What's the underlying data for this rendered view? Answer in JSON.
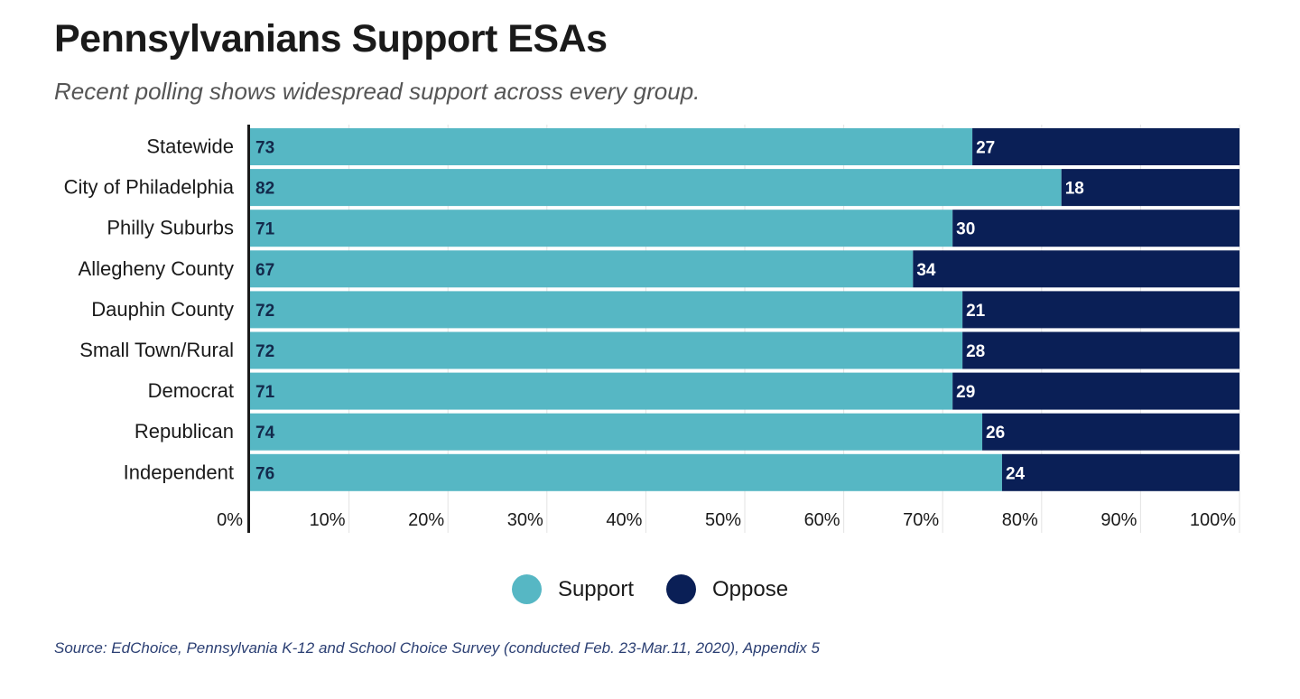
{
  "title": "Pennsylvanians Support ESAs",
  "subtitle": "Recent polling shows widespread support across every group.",
  "source": "Source: EdChoice, Pennsylvania K-12 and School Choice Survey (conducted Feb. 23-Mar.11, 2020), Appendix 5",
  "colors": {
    "support": "#56b7c4",
    "oppose": "#0a1f56",
    "grid": "#e3e3e3",
    "axis": "#1a1a1a"
  },
  "legend": [
    {
      "label": "Support",
      "color": "#56b7c4"
    },
    {
      "label": "Oppose",
      "color": "#0a1f56"
    }
  ],
  "chart_data": {
    "type": "bar",
    "orientation": "horizontal",
    "stacked": true,
    "categories": [
      "Statewide",
      "City of Philadelphia",
      "Philly Suburbs",
      "Allegheny County",
      "Dauphin County",
      "Small Town/Rural",
      "Democrat",
      "Republican",
      "Independent"
    ],
    "series": [
      {
        "name": "Support",
        "values": [
          73,
          82,
          71,
          67,
          72,
          72,
          71,
          74,
          76
        ]
      },
      {
        "name": "Oppose",
        "values": [
          27,
          18,
          30,
          34,
          21,
          28,
          29,
          26,
          24
        ]
      }
    ],
    "xlim": [
      0,
      100
    ],
    "xticks": [
      "0%",
      "10%",
      "20%",
      "30%",
      "40%",
      "50%",
      "60%",
      "70%",
      "80%",
      "90%",
      "100%"
    ],
    "grid": true,
    "legend_position": "bottom"
  }
}
